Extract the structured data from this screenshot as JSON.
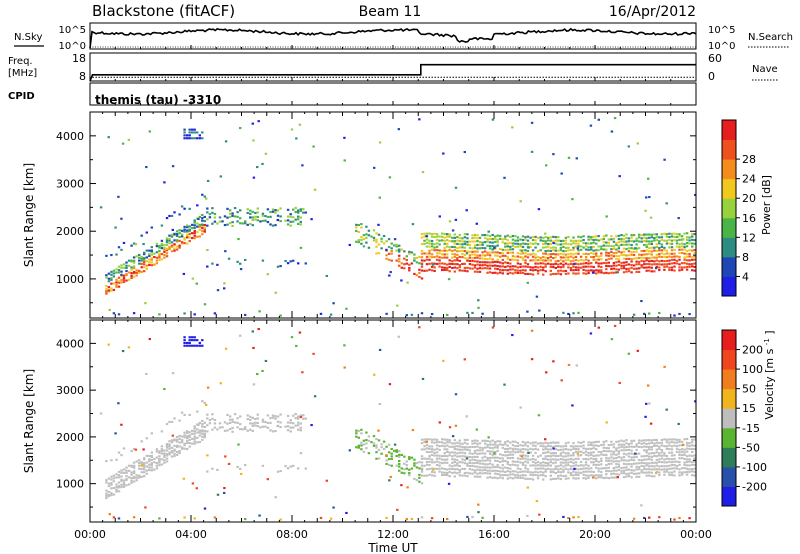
{
  "header": {
    "title": "Blackstone (fitACF)",
    "beam": "Beam 11",
    "date": "16/Apr/2012"
  },
  "colors": {
    "frame": "#000000",
    "stripe_grey": "#bfbfbf",
    "power_scale": [
      "#1e1ee6",
      "#1e46b4",
      "#2d8c82",
      "#4bb446",
      "#96d23c",
      "#f0c81e",
      "#f58c1e",
      "#f0501e",
      "#e61e1e"
    ],
    "velocity_scale": [
      "#1e1ee6",
      "#2850aa",
      "#2d7d5a",
      "#5ab432",
      "#bebebe",
      "#f0b41e",
      "#f07d1e",
      "#f0461e",
      "#e61e1e"
    ]
  },
  "chart_data": [
    {
      "type": "line",
      "name": "noise",
      "left_label": "N.Sky",
      "right_label": "N.Search",
      "left_ticks": [
        "10^5",
        "10^0"
      ],
      "right_ticks": [
        "10^5",
        "10^0"
      ]
    },
    {
      "type": "line",
      "name": "frequency",
      "left_label_1": "Freq.",
      "left_label_2": "[MHz]",
      "right_label": "Nave",
      "left_ticks": [
        "18",
        "8"
      ],
      "right_ticks": [
        "60",
        "0"
      ],
      "x_hours": [
        0,
        0.1,
        13.1,
        13.1,
        24
      ],
      "freq_mhz": [
        8,
        10.7,
        10.7,
        15.1,
        15.1
      ],
      "nave": [
        0,
        5,
        5,
        5,
        5
      ]
    },
    {
      "type": "table",
      "name": "cpid",
      "label": "CPID",
      "value": "themis (tau) -3310"
    },
    {
      "type": "heatmap",
      "name": "power",
      "ylabel": "Slant Range [km]",
      "ylim": [
        180,
        4500
      ],
      "y_ticks": [
        "1000",
        "2000",
        "3000",
        "4000"
      ],
      "y_tick_values": [
        1000,
        2000,
        3000,
        4000
      ],
      "colorbar_label": "Power [dB]",
      "colorbar_ticks": [
        "4",
        "8",
        "12",
        "16",
        "20",
        "24",
        "28"
      ],
      "colorbar_range": [
        0,
        32
      ]
    },
    {
      "type": "heatmap",
      "name": "velocity",
      "ylabel": "Slant Range [km]",
      "ylim": [
        180,
        4500
      ],
      "y_ticks": [
        "1000",
        "2000",
        "3000",
        "4000"
      ],
      "y_tick_values": [
        1000,
        2000,
        3000,
        4000
      ],
      "colorbar_label": "Velocity [m s",
      "colorbar_label_sup": "-1",
      "colorbar_label_end": "]",
      "colorbar_ticks": [
        "200",
        "100",
        "50",
        "15",
        "-15",
        "-50",
        "-100",
        "-200"
      ]
    }
  ],
  "time_axis": {
    "xlabel": "Time UT",
    "tick_labels": [
      "00:00",
      "04:00",
      "08:00",
      "12:00",
      "16:00",
      "20:00",
      "00:00"
    ],
    "tick_hours": [
      0,
      4,
      8,
      12,
      16,
      20,
      24
    ],
    "range_hours": [
      0,
      24
    ]
  }
}
